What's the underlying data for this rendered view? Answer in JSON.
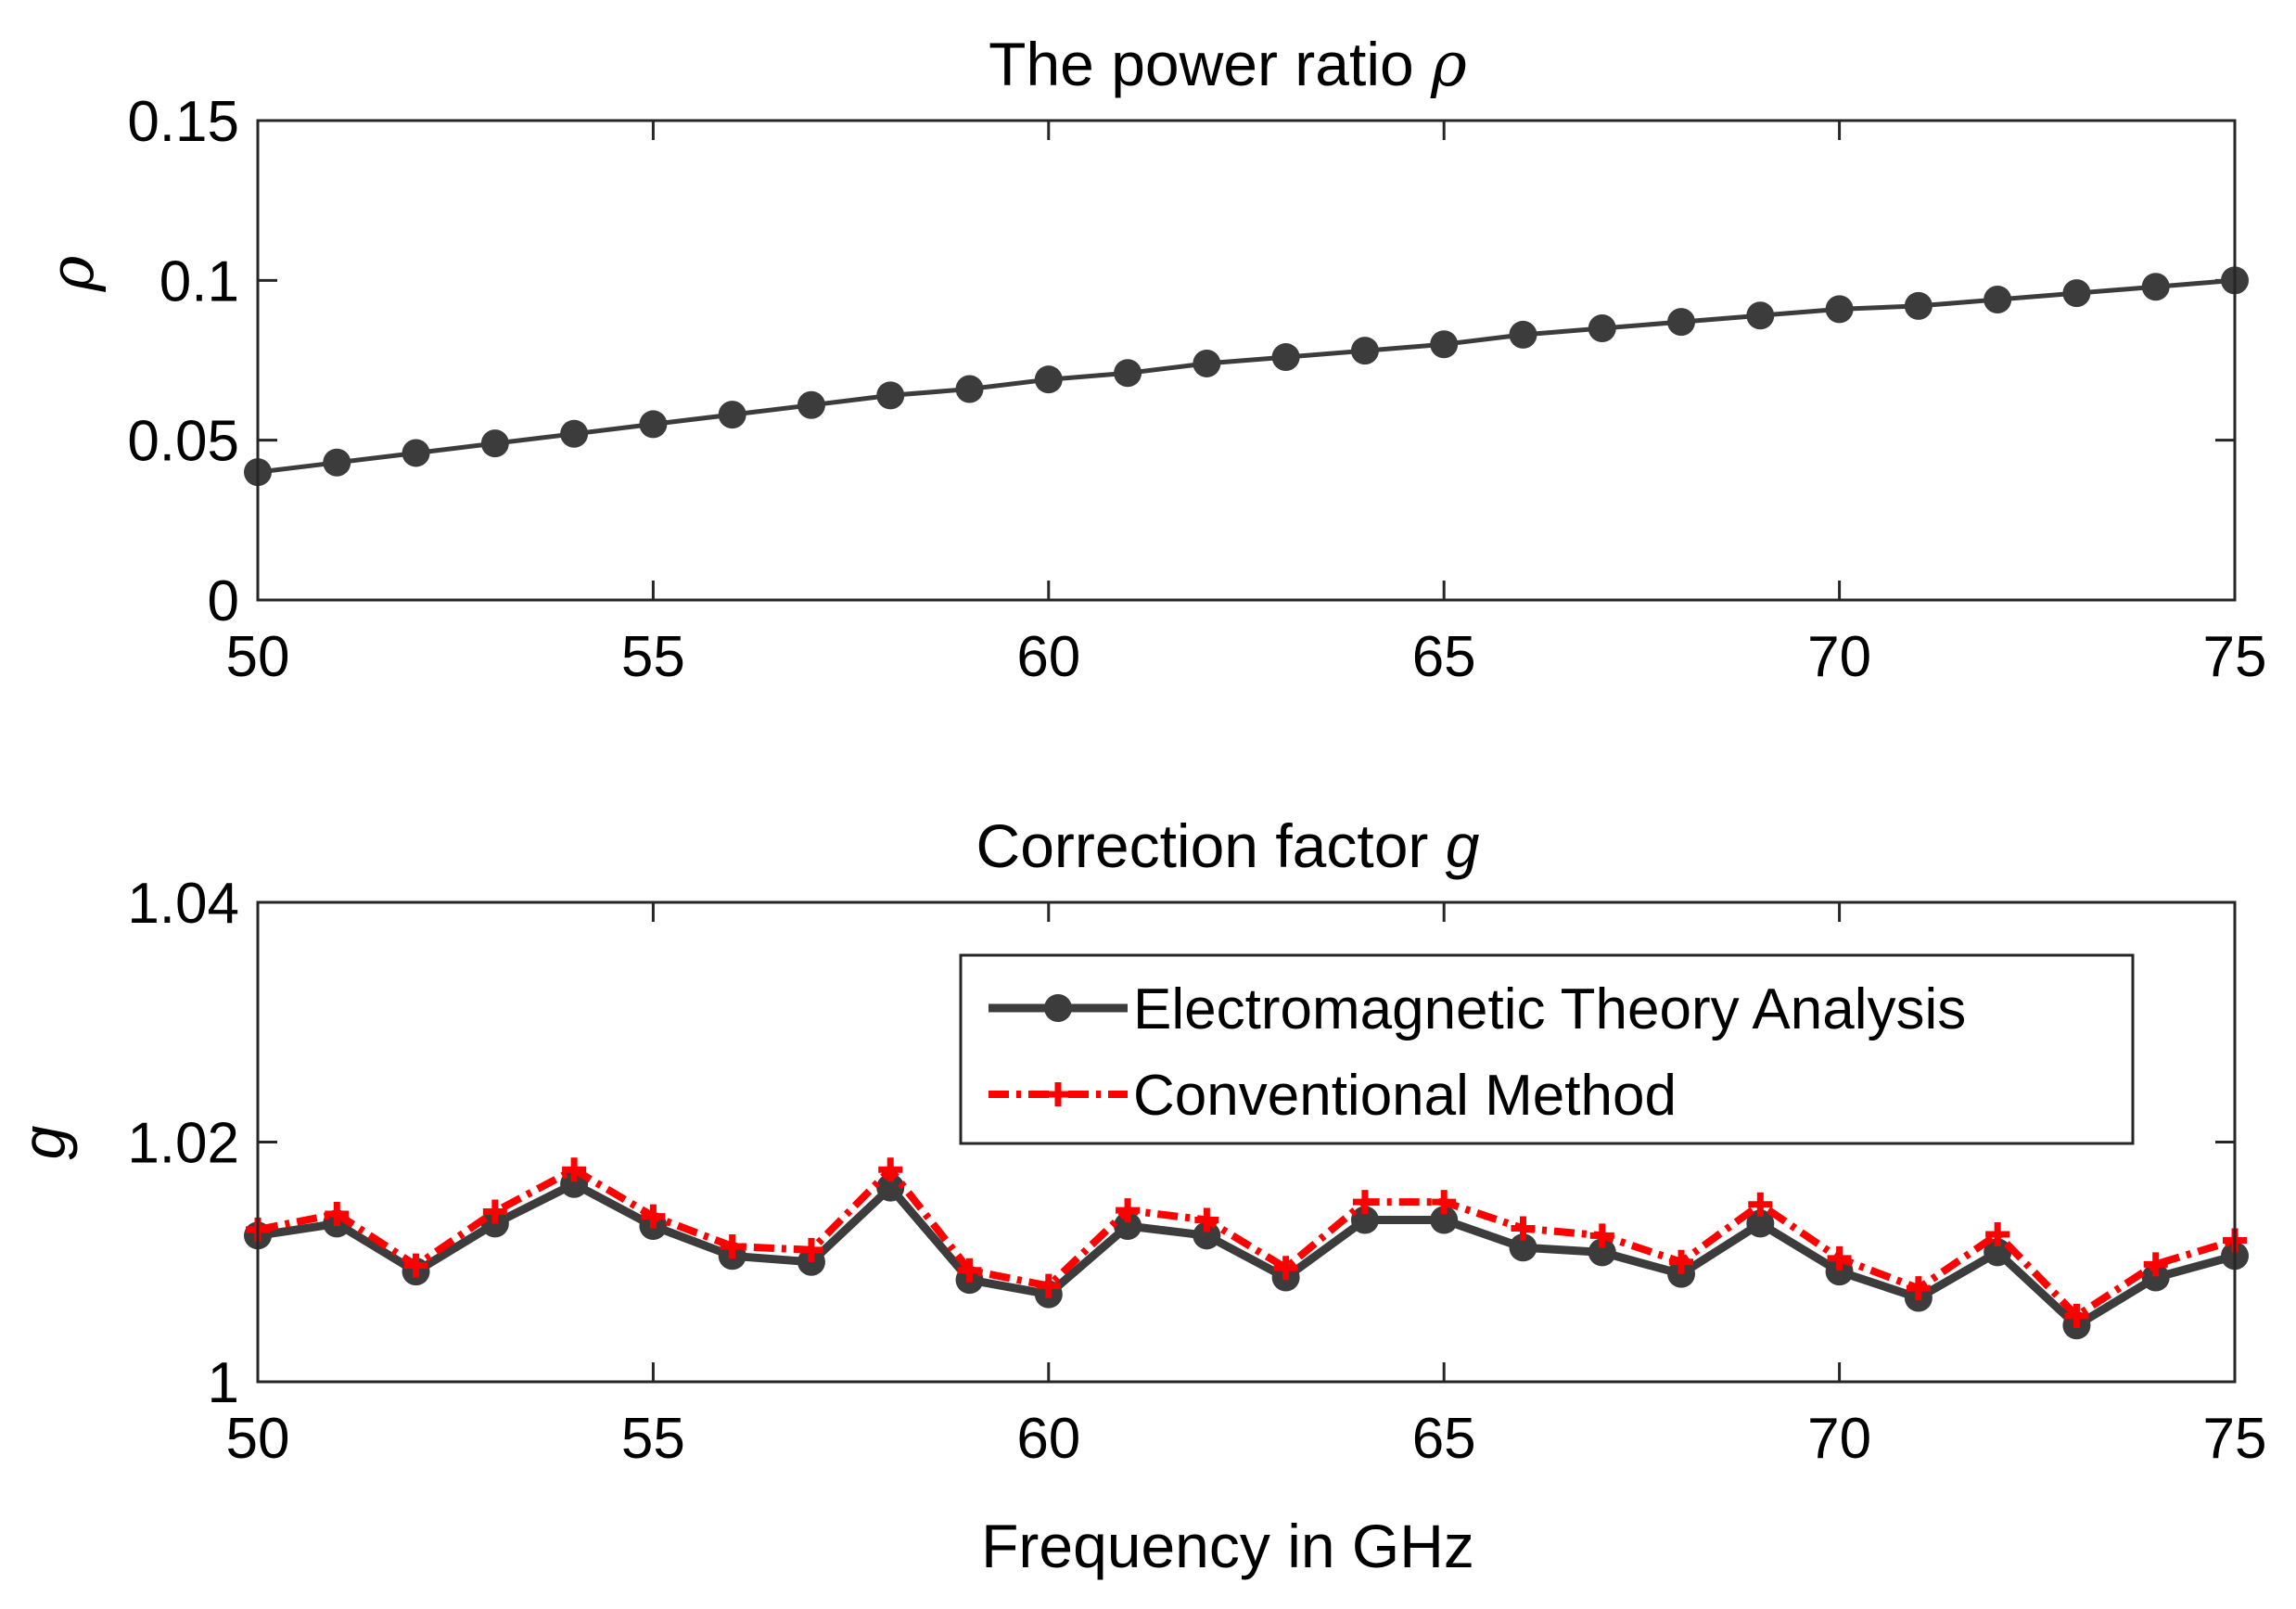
{
  "chart_data": [
    {
      "type": "line",
      "title": "The power ratio",
      "title_symbol": "ρ",
      "xlabel": "",
      "ylabel": "ρ",
      "xlim": [
        50,
        75
      ],
      "ylim": [
        0,
        0.15
      ],
      "xticks": [
        50,
        55,
        60,
        65,
        70,
        75
      ],
      "yticks": [
        0,
        0.05,
        0.1,
        0.15
      ],
      "xtick_labels": [
        "50",
        "55",
        "60",
        "65",
        "70",
        "75"
      ],
      "ytick_labels": [
        "0",
        "0.05",
        "0.1",
        "0.15"
      ],
      "grid": false,
      "x": [
        50,
        51,
        52,
        53,
        54,
        55,
        56,
        57,
        58,
        59,
        60,
        61,
        62,
        63,
        64,
        65,
        66,
        67,
        68,
        69,
        70,
        71,
        72,
        73,
        74,
        75
      ],
      "series": [
        {
          "name": "ρ",
          "color": "#3c3c3c",
          "marker": "circle",
          "line_style": "solid",
          "values": [
            0.04,
            0.043,
            0.046,
            0.049,
            0.052,
            0.055,
            0.058,
            0.061,
            0.064,
            0.066,
            0.069,
            0.071,
            0.074,
            0.076,
            0.078,
            0.08,
            0.083,
            0.085,
            0.087,
            0.089,
            0.091,
            0.092,
            0.094,
            0.096,
            0.098,
            0.1
          ]
        }
      ]
    },
    {
      "type": "line",
      "title": "Correction factor",
      "title_symbol": "g",
      "xlabel": "Frequency in GHz",
      "ylabel": "g",
      "xlim": [
        50,
        75
      ],
      "ylim": [
        1,
        1.04
      ],
      "xticks": [
        50,
        55,
        60,
        65,
        70,
        75
      ],
      "yticks": [
        1,
        1.02,
        1.04
      ],
      "xtick_labels": [
        "50",
        "55",
        "60",
        "65",
        "70",
        "75"
      ],
      "ytick_labels": [
        "1",
        "1.02",
        "1.04"
      ],
      "grid": false,
      "legend_position": "top-right",
      "x": [
        50,
        51,
        52,
        53,
        54,
        55,
        56,
        57,
        58,
        59,
        60,
        61,
        62,
        63,
        64,
        65,
        66,
        67,
        68,
        69,
        70,
        71,
        72,
        73,
        74,
        75
      ],
      "series": [
        {
          "name": "Electromagnetic Theory Analysis",
          "color": "#3c3c3c",
          "marker": "circle",
          "line_style": "solid",
          "values": [
            1.0122,
            1.0132,
            1.0092,
            1.0132,
            1.0165,
            1.013,
            1.0105,
            1.01,
            1.0162,
            1.0085,
            1.0073,
            1.013,
            1.0122,
            1.0087,
            1.0135,
            1.0135,
            1.0112,
            1.0108,
            1.009,
            1.0132,
            1.0092,
            1.007,
            1.0108,
            1.0047,
            1.0087,
            1.0105
          ]
        },
        {
          "name": "Conventional Method",
          "color": "#ff0000",
          "marker": "plus",
          "line_style": "dash-dot",
          "values": [
            1.0127,
            1.014,
            1.0097,
            1.0142,
            1.0177,
            1.0138,
            1.0113,
            1.011,
            1.0177,
            1.0093,
            1.008,
            1.0143,
            1.0135,
            1.0095,
            1.015,
            1.015,
            1.0128,
            1.0122,
            1.01,
            1.0148,
            1.0103,
            1.0078,
            1.0123,
            1.0055,
            1.0098,
            1.0118
          ]
        }
      ]
    }
  ]
}
